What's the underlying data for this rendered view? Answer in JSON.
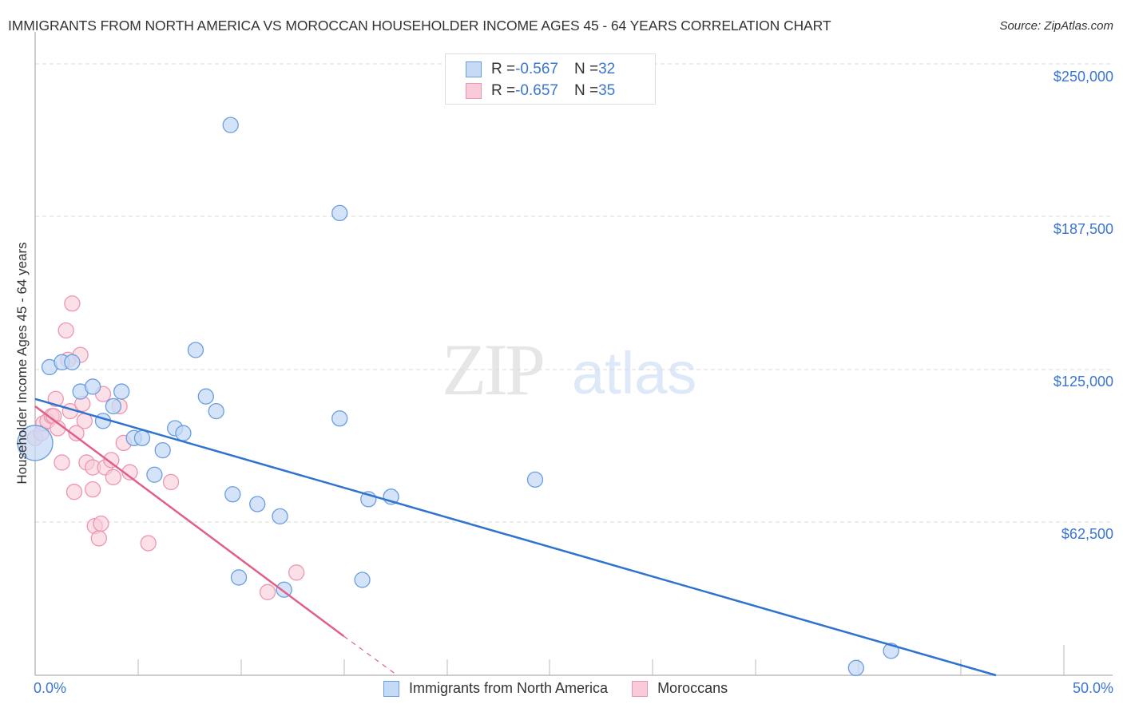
{
  "header": {
    "title": "IMMIGRANTS FROM NORTH AMERICA VS MOROCCAN HOUSEHOLDER INCOME AGES 45 - 64 YEARS CORRELATION CHART",
    "source": "Source: ZipAtlas.com"
  },
  "watermark": {
    "zip": "ZIP",
    "atlas": "atlas"
  },
  "legend_top": {
    "rows": [
      {
        "r_label": "R = ",
        "r_value": "-0.567",
        "n_label": "N = ",
        "n_value": "32",
        "color": "#a9c8f0"
      },
      {
        "r_label": "R = ",
        "r_value": "-0.657",
        "n_label": "N = ",
        "n_value": "35",
        "color": "#f7b8cb"
      }
    ]
  },
  "legend_bottom": {
    "items": [
      {
        "label": "Immigrants from North America",
        "color": "#a9c8f0"
      },
      {
        "label": "Moroccans",
        "color": "#f7b8cb"
      }
    ]
  },
  "axes": {
    "ylabel": "Householder Income Ages 45 - 64 years",
    "yticks": [
      "$250,000",
      "$187,500",
      "$125,000",
      "$62,500"
    ],
    "xticks": [
      "0.0%",
      "50.0%"
    ]
  },
  "colors": {
    "blue_fill": "#c5daf5",
    "blue_stroke": "#6a9ee0",
    "blue_line": "#2f72d0",
    "pink_fill": "#f9cbd9",
    "pink_stroke": "#ec97b2",
    "pink_line": "#e0608a",
    "axis_text": "#3a75d4"
  },
  "chart_data": {
    "type": "scatter",
    "title": "IMMIGRANTS FROM NORTH AMERICA VS MOROCCAN HOUSEHOLDER INCOME AGES 45 - 64 YEARS CORRELATION CHART",
    "xlabel": "",
    "ylabel": "Householder Income Ages 45 - 64 years",
    "xlim": [
      0,
      50
    ],
    "ylim": [
      0,
      250000
    ],
    "x_unit": "%",
    "grid": true,
    "legend_position": "top-center",
    "series": [
      {
        "name": "Immigrants from North America",
        "r": -0.567,
        "n": 32,
        "trend": {
          "x": [
            0,
            46.7
          ],
          "y": [
            113000,
            0
          ]
        },
        "points": [
          {
            "x": 0.0,
            "y": 95000,
            "size": "large"
          },
          {
            "x": 0.7,
            "y": 126000
          },
          {
            "x": 1.3,
            "y": 128000
          },
          {
            "x": 1.8,
            "y": 128000
          },
          {
            "x": 2.2,
            "y": 116000
          },
          {
            "x": 2.8,
            "y": 118000
          },
          {
            "x": 3.3,
            "y": 104000
          },
          {
            "x": 3.8,
            "y": 110000
          },
          {
            "x": 4.2,
            "y": 116000
          },
          {
            "x": 4.8,
            "y": 97000
          },
          {
            "x": 5.2,
            "y": 97000
          },
          {
            "x": 5.8,
            "y": 82000
          },
          {
            "x": 6.2,
            "y": 92000
          },
          {
            "x": 6.8,
            "y": 101000
          },
          {
            "x": 7.2,
            "y": 99000
          },
          {
            "x": 7.8,
            "y": 133000
          },
          {
            "x": 8.3,
            "y": 114000
          },
          {
            "x": 8.8,
            "y": 108000
          },
          {
            "x": 9.5,
            "y": 225000
          },
          {
            "x": 9.6,
            "y": 74000
          },
          {
            "x": 9.9,
            "y": 40000
          },
          {
            "x": 10.8,
            "y": 70000
          },
          {
            "x": 11.9,
            "y": 65000
          },
          {
            "x": 12.1,
            "y": 35000
          },
          {
            "x": 14.8,
            "y": 105000
          },
          {
            "x": 14.8,
            "y": 189000
          },
          {
            "x": 15.9,
            "y": 39000
          },
          {
            "x": 16.2,
            "y": 72000
          },
          {
            "x": 17.3,
            "y": 73000
          },
          {
            "x": 24.3,
            "y": 80000
          },
          {
            "x": 39.9,
            "y": 3000
          },
          {
            "x": 41.6,
            "y": 10000
          }
        ]
      },
      {
        "name": "Moroccans",
        "r": -0.657,
        "n": 35,
        "trend": {
          "x": [
            0,
            15.0,
            17.6
          ],
          "y": [
            110000,
            16000,
            0
          ],
          "solid_until_x": 15.0
        },
        "points": [
          {
            "x": 0.0,
            "y": 97000
          },
          {
            "x": 0.3,
            "y": 99000
          },
          {
            "x": 0.4,
            "y": 103000
          },
          {
            "x": 0.6,
            "y": 104000
          },
          {
            "x": 0.8,
            "y": 106000
          },
          {
            "x": 0.9,
            "y": 106000
          },
          {
            "x": 1.0,
            "y": 113000
          },
          {
            "x": 1.1,
            "y": 101000
          },
          {
            "x": 1.3,
            "y": 87000
          },
          {
            "x": 1.5,
            "y": 141000
          },
          {
            "x": 1.6,
            "y": 129000
          },
          {
            "x": 1.7,
            "y": 108000
          },
          {
            "x": 1.8,
            "y": 152000
          },
          {
            "x": 1.9,
            "y": 75000
          },
          {
            "x": 2.0,
            "y": 99000
          },
          {
            "x": 2.2,
            "y": 131000
          },
          {
            "x": 2.3,
            "y": 111000
          },
          {
            "x": 2.4,
            "y": 104000
          },
          {
            "x": 2.5,
            "y": 87000
          },
          {
            "x": 2.8,
            "y": 85000
          },
          {
            "x": 2.8,
            "y": 76000
          },
          {
            "x": 2.9,
            "y": 61000
          },
          {
            "x": 3.1,
            "y": 56000
          },
          {
            "x": 3.2,
            "y": 62000
          },
          {
            "x": 3.3,
            "y": 115000
          },
          {
            "x": 3.4,
            "y": 85000
          },
          {
            "x": 3.7,
            "y": 88000
          },
          {
            "x": 3.8,
            "y": 81000
          },
          {
            "x": 4.1,
            "y": 110000
          },
          {
            "x": 4.6,
            "y": 83000
          },
          {
            "x": 5.5,
            "y": 54000
          },
          {
            "x": 6.6,
            "y": 79000
          },
          {
            "x": 11.3,
            "y": 34000
          },
          {
            "x": 12.7,
            "y": 42000
          },
          {
            "x": 4.3,
            "y": 95000
          }
        ]
      }
    ]
  }
}
